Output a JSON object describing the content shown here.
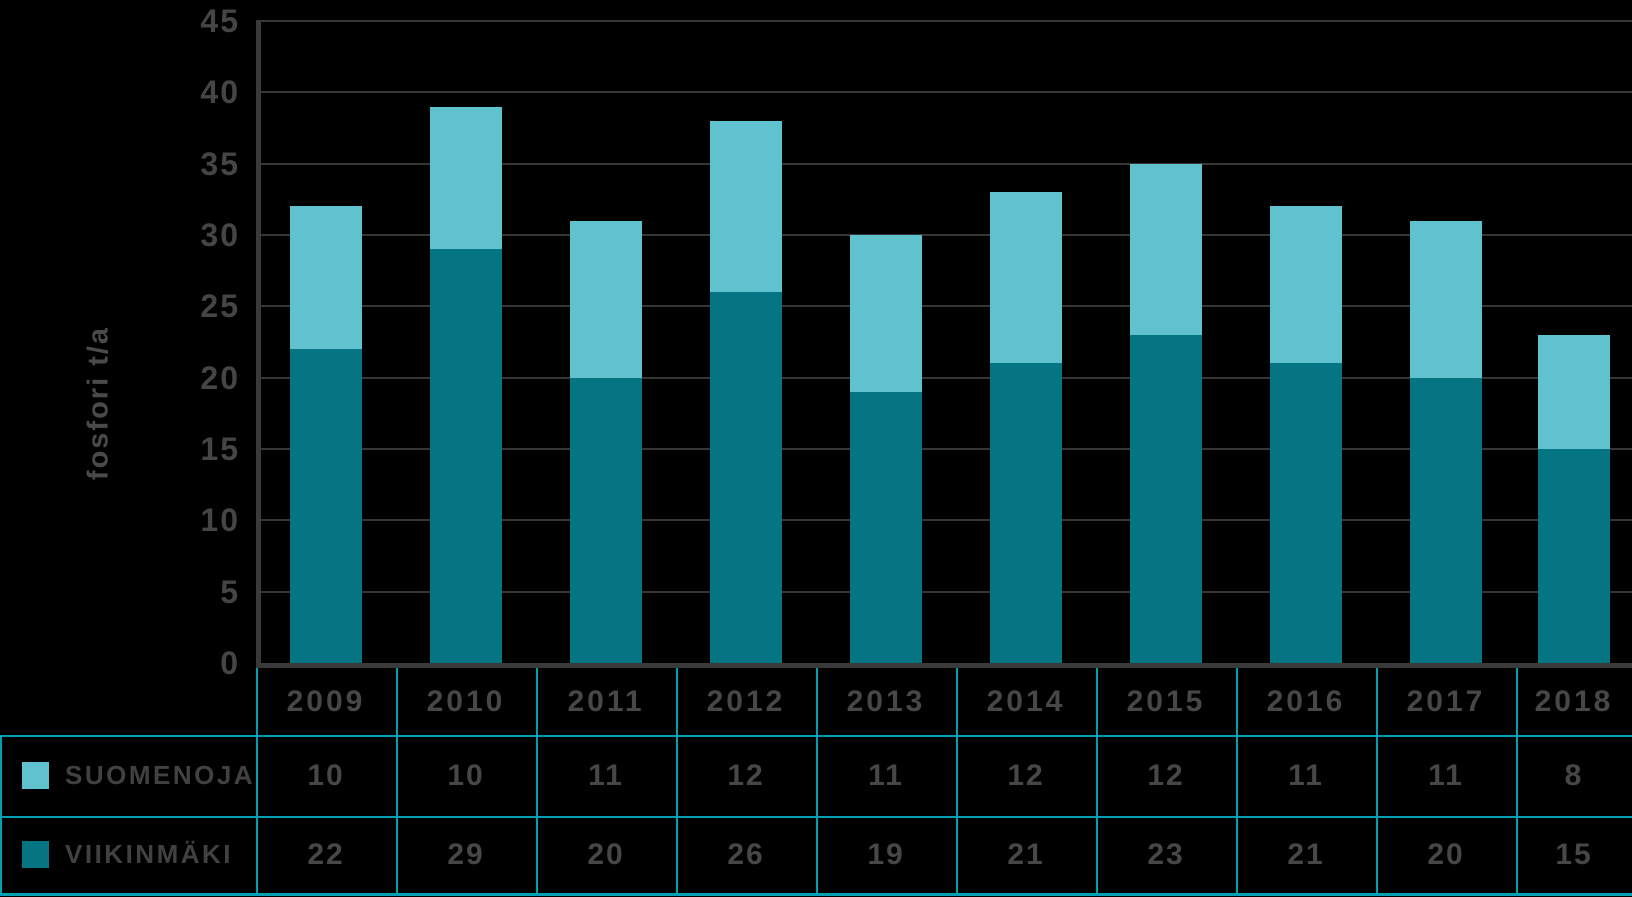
{
  "chart_data": {
    "type": "bar",
    "stacked": true,
    "title": "",
    "ylabel": "fosfori t/a",
    "xlabel": "",
    "ylim": [
      0,
      45
    ],
    "ytick_step": 5,
    "yticks": [
      45,
      40,
      35,
      30,
      25,
      20,
      15,
      10,
      5,
      0
    ],
    "grid": "horizontal",
    "legend_position": "bottom-table",
    "categories": [
      "2009",
      "2010",
      "2011",
      "2012",
      "2013",
      "2014",
      "2015",
      "2016",
      "2017",
      "2018"
    ],
    "series": [
      {
        "name": "SUOMENOJA",
        "color": "#5fc2ce",
        "values": [
          10,
          10,
          11,
          12,
          11,
          12,
          12,
          11,
          11,
          8
        ]
      },
      {
        "name": "VIIKINMÄKI",
        "color": "#057583",
        "values": [
          22,
          29,
          20,
          26,
          19,
          21,
          23,
          21,
          20,
          15
        ]
      }
    ],
    "totals": [
      32,
      39,
      31,
      38,
      30,
      33,
      35,
      32,
      31,
      23
    ]
  },
  "table": {
    "header_row": [
      "2009",
      "2010",
      "2011",
      "2012",
      "2013",
      "2014",
      "2015",
      "2016",
      "2017",
      "2018"
    ],
    "rows": [
      {
        "label": "SUOMENOJA",
        "values": [
          "10",
          "10",
          "11",
          "12",
          "11",
          "12",
          "12",
          "11",
          "11",
          "8"
        ]
      },
      {
        "label": "VIIKINMÄKI",
        "values": [
          "22",
          "29",
          "20",
          "26",
          "19",
          "21",
          "23",
          "21",
          "20",
          "15"
        ]
      }
    ],
    "border_color": "#00a0b2"
  },
  "style_colors": {
    "background": "#000000",
    "axis": "#3a3a3a",
    "gridline": "#363636",
    "text": "#474747",
    "suomenoja": "#5fc2ce",
    "viikinmaki": "#057583"
  }
}
